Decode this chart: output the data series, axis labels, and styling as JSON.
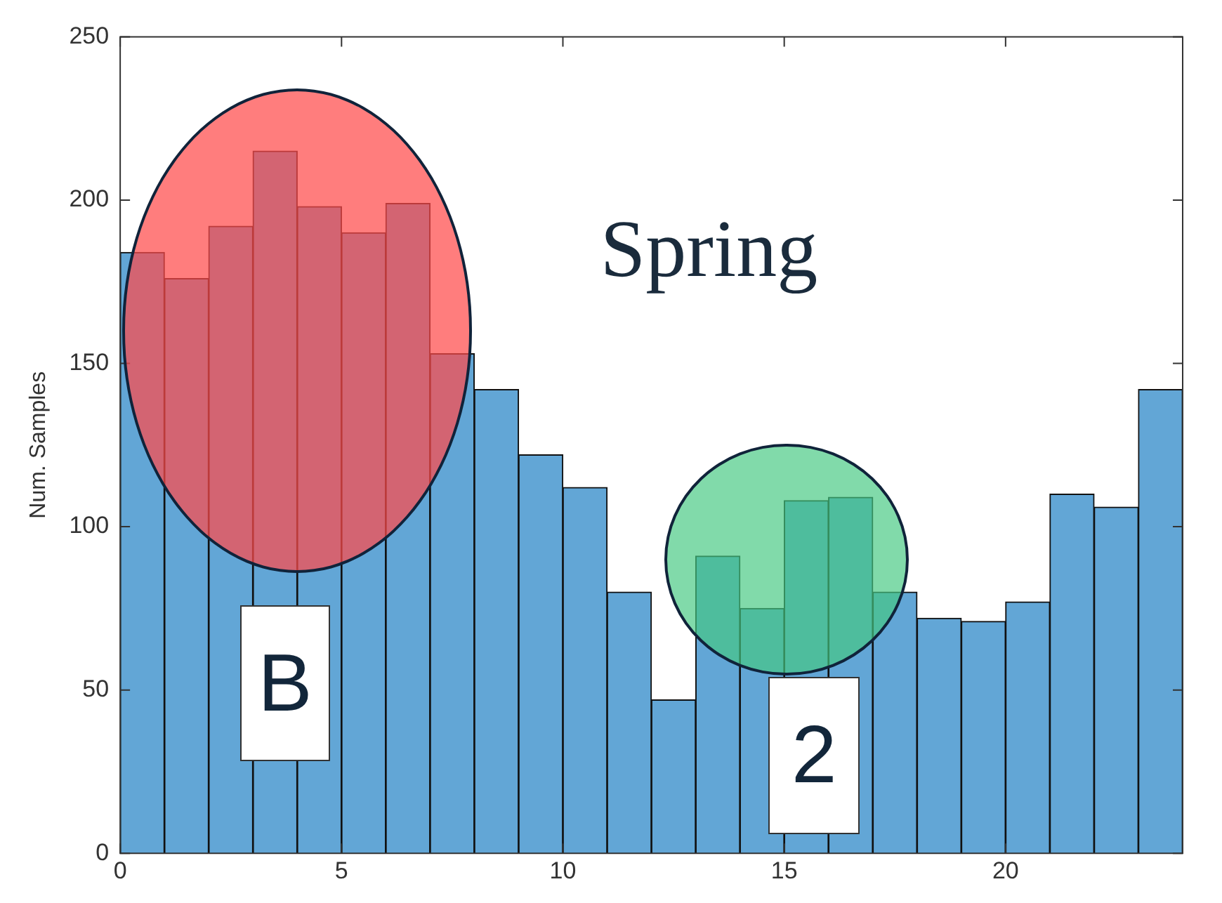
{
  "chart_data": {
    "type": "histogram",
    "ylabel": "Num. Samples",
    "annotations": [
      "Spring",
      "B",
      "2"
    ],
    "bins": [
      0,
      1,
      2,
      3,
      4,
      5,
      6,
      7,
      8,
      9,
      10,
      11,
      12,
      13,
      14,
      15,
      16,
      17,
      18,
      19,
      20,
      21,
      22,
      23,
      24
    ],
    "values": [
      184,
      176,
      192,
      215,
      198,
      190,
      199,
      153,
      142,
      122,
      112,
      80,
      47,
      91,
      75,
      108,
      109,
      80,
      72,
      71,
      77,
      110,
      106,
      142
    ],
    "color": "#62a6d6",
    "xlim": [
      0,
      24
    ],
    "xticks": [
      0,
      5,
      10,
      15,
      20
    ],
    "ylim": [
      0,
      250
    ],
    "yticks": [
      0,
      50,
      100,
      150,
      200,
      250
    ],
    "grid": false,
    "legend": false
  }
}
